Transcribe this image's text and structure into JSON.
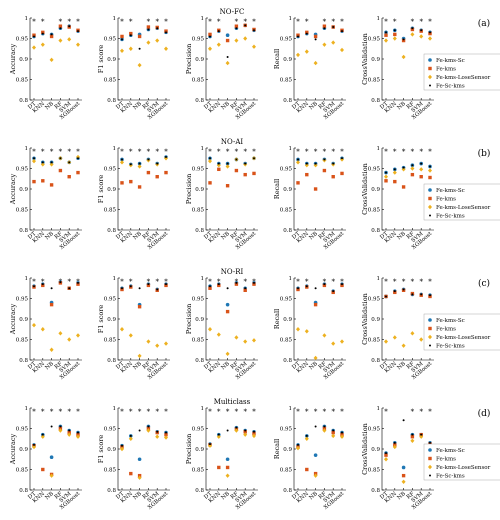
{
  "figure": {
    "categories": [
      "DT",
      "KNN",
      "NB",
      "RF",
      "SVM",
      "XGBoost"
    ],
    "metrics": [
      "Accuracy",
      "F1 score",
      "Precision",
      "Recall",
      "CrossValidation"
    ],
    "yticks": [
      "0.8",
      "0.85",
      "0.9",
      "0.95",
      "1"
    ],
    "ylim": [
      0.8,
      1.0
    ],
    "colors": {
      "Fe-kms-Sc": "#1f77b4",
      "Fe-kms": "#d95319",
      "Fe-kms-LoseSensor": "#edb120",
      "Fe-Sc-kms": "#000000"
    },
    "markers": {
      "Fe-kms-Sc": "circle",
      "Fe-kms": "square",
      "Fe-kms-LoseSensor": "diamond",
      "Fe-Sc-kms": "circle-small"
    },
    "significance_mark": "*"
  },
  "chart_data": [
    {
      "type": "scatter",
      "title": "NO-FC",
      "panel_label": "(a)",
      "legend_labels": [
        "Fe-kms-Sc",
        "Fe-kms",
        "Fe-kms-LoseSensor",
        "Fe-Sc-kms"
      ],
      "subplots": [
        {
          "ylabel": "Accuracy",
          "stars": [
            0,
            1,
            3,
            4,
            5
          ],
          "series": {
            "Fe-kms-Sc": [
              0.955,
              0.962,
              0.96,
              0.975,
              0.98,
              0.968
            ],
            "Fe-kms": [
              0.958,
              0.965,
              0.955,
              0.98,
              0.978,
              0.97
            ],
            "Fe-kms-LoseSensor": [
              0.928,
              0.935,
              0.898,
              0.945,
              0.948,
              0.935
            ],
            "Fe-Sc-kms": [
              0.955,
              0.962,
              0.96,
              0.975,
              0.98,
              0.968
            ]
          }
        },
        {
          "ylabel": "F1 score",
          "stars": [
            0,
            1,
            3,
            4,
            5
          ],
          "series": {
            "Fe-kms-Sc": [
              0.948,
              0.958,
              0.96,
              0.972,
              0.975,
              0.965
            ],
            "Fe-kms": [
              0.955,
              0.962,
              0.955,
              0.978,
              0.977,
              0.968
            ],
            "Fe-kms-LoseSensor": [
              0.92,
              0.925,
              0.885,
              0.94,
              0.945,
              0.925
            ],
            "Fe-Sc-kms": [
              0.948,
              0.958,
              0.925,
              0.972,
              0.975,
              0.965
            ]
          }
        },
        {
          "ylabel": "Precision",
          "stars": [
            0,
            1,
            3,
            4,
            5
          ],
          "series": {
            "Fe-kms-Sc": [
              0.955,
              0.968,
              0.958,
              0.975,
              0.982,
              0.97
            ],
            "Fe-kms": [
              0.96,
              0.97,
              0.945,
              0.98,
              0.982,
              0.972
            ],
            "Fe-kms-LoseSensor": [
              0.925,
              0.935,
              0.89,
              0.945,
              0.95,
              0.93
            ],
            "Fe-Sc-kms": [
              0.955,
              0.968,
              0.905,
              0.975,
              0.982,
              0.97
            ]
          }
        },
        {
          "ylabel": "Recall",
          "stars": [
            0,
            1,
            3,
            4,
            5
          ],
          "series": {
            "Fe-kms-Sc": [
              0.955,
              0.962,
              0.96,
              0.975,
              0.978,
              0.968
            ],
            "Fe-kms": [
              0.958,
              0.965,
              0.955,
              0.98,
              0.978,
              0.97
            ],
            "Fe-kms-LoseSensor": [
              0.91,
              0.918,
              0.89,
              0.935,
              0.94,
              0.922
            ],
            "Fe-Sc-kms": [
              0.955,
              0.962,
              0.948,
              0.975,
              0.978,
              0.968
            ]
          }
        },
        {
          "ylabel": "CrossValidation",
          "stars": [
            0,
            1,
            3,
            4,
            5
          ],
          "series": {
            "Fe-kms-Sc": [
              0.965,
              0.97,
              0.95,
              0.975,
              0.97,
              0.965
            ],
            "Fe-kms": [
              0.958,
              0.96,
              0.945,
              0.972,
              0.968,
              0.962
            ],
            "Fe-kms-LoseSensor": [
              0.945,
              0.95,
              0.905,
              0.96,
              0.955,
              0.95
            ],
            "Fe-Sc-kms": [
              0.965,
              0.97,
              0.948,
              0.975,
              0.97,
              0.965
            ]
          }
        }
      ]
    },
    {
      "type": "scatter",
      "title": "NO-AI",
      "panel_label": "(b)",
      "legend_labels": [
        "Fe-kms-Sc",
        "Fe-kms",
        "Fe-kms-LoseSensor",
        "Fe-Sc-kms"
      ],
      "subplots": [
        {
          "ylabel": "Accuracy",
          "stars": [
            0,
            1,
            2,
            3,
            4,
            5
          ],
          "series": {
            "Fe-kms-Sc": [
              0.975,
              0.965,
              0.965,
              0.975,
              0.965,
              0.975
            ],
            "Fe-kms": [
              0.918,
              0.92,
              0.91,
              0.945,
              0.93,
              0.94
            ],
            "Fe-kms-LoseSensor": [
              0.968,
              0.96,
              0.96,
              0.975,
              0.965,
              0.978
            ],
            "Fe-Sc-kms": [
              0.975,
              0.965,
              0.965,
              0.975,
              0.965,
              0.975
            ]
          }
        },
        {
          "ylabel": "F1 score",
          "stars": [
            0,
            1,
            2,
            3,
            4,
            5
          ],
          "series": {
            "Fe-kms-Sc": [
              0.972,
              0.96,
              0.962,
              0.972,
              0.962,
              0.978
            ],
            "Fe-kms": [
              0.915,
              0.918,
              0.905,
              0.94,
              0.93,
              0.94
            ],
            "Fe-kms-LoseSensor": [
              0.965,
              0.958,
              0.955,
              0.97,
              0.96,
              0.975
            ],
            "Fe-Sc-kms": [
              0.972,
              0.96,
              0.962,
              0.972,
              0.962,
              0.978
            ]
          }
        },
        {
          "ylabel": "Precision",
          "stars": [
            0,
            1,
            2,
            3,
            4,
            5
          ],
          "series": {
            "Fe-kms-Sc": [
              0.975,
              0.962,
              0.962,
              0.972,
              0.962,
              0.975
            ],
            "Fe-kms": [
              0.915,
              0.948,
              0.908,
              0.945,
              0.935,
              0.938
            ],
            "Fe-kms-LoseSensor": [
              0.968,
              0.958,
              0.955,
              0.972,
              0.96,
              0.975
            ],
            "Fe-Sc-kms": [
              0.975,
              0.962,
              0.962,
              0.972,
              0.962,
              0.975
            ]
          }
        },
        {
          "ylabel": "Recall",
          "stars": [
            0,
            1,
            2,
            3,
            4,
            5
          ],
          "series": {
            "Fe-kms-Sc": [
              0.972,
              0.962,
              0.962,
              0.972,
              0.962,
              0.975
            ],
            "Fe-kms": [
              0.915,
              0.935,
              0.9,
              0.945,
              0.93,
              0.938
            ],
            "Fe-kms-LoseSensor": [
              0.965,
              0.958,
              0.958,
              0.97,
              0.96,
              0.972
            ],
            "Fe-Sc-kms": [
              0.972,
              0.962,
              0.962,
              0.972,
              0.962,
              0.975
            ]
          }
        },
        {
          "ylabel": "CrossValidation",
          "stars": [
            0,
            1,
            2,
            3,
            4,
            5
          ],
          "series": {
            "Fe-kms-Sc": [
              0.94,
              0.948,
              0.952,
              0.958,
              0.962,
              0.955
            ],
            "Fe-kms": [
              0.92,
              0.918,
              0.905,
              0.935,
              0.93,
              0.928
            ],
            "Fe-kms-LoseSensor": [
              0.93,
              0.94,
              0.948,
              0.95,
              0.948,
              0.945
            ],
            "Fe-Sc-kms": [
              0.94,
              0.948,
              0.952,
              0.958,
              0.962,
              0.955
            ]
          }
        }
      ]
    },
    {
      "type": "scatter",
      "title": "NO-RI",
      "panel_label": "(c)",
      "legend_labels": [
        "Fe-kms-Sc",
        "Fe-kms",
        "Fe-kms-LoseSensor",
        "Fe-Sc-kms"
      ],
      "subplots": [
        {
          "ylabel": "Accuracy",
          "stars": [
            0,
            1,
            3,
            4,
            5
          ],
          "series": {
            "Fe-kms-Sc": [
              0.98,
              0.985,
              0.94,
              0.99,
              0.975,
              0.988
            ],
            "Fe-kms": [
              0.978,
              0.982,
              0.935,
              0.988,
              0.975,
              0.985
            ],
            "Fe-kms-LoseSensor": [
              0.885,
              0.875,
              0.825,
              0.865,
              0.85,
              0.86
            ],
            "Fe-Sc-kms": [
              0.98,
              0.985,
              0.975,
              0.99,
              0.975,
              0.988
            ]
          }
        },
        {
          "ylabel": "F1 score",
          "stars": [
            0,
            1,
            3,
            4,
            5
          ],
          "series": {
            "Fe-kms-Sc": [
              0.975,
              0.98,
              0.935,
              0.985,
              0.972,
              0.985
            ],
            "Fe-kms": [
              0.972,
              0.978,
              0.93,
              0.982,
              0.97,
              0.982
            ],
            "Fe-kms-LoseSensor": [
              0.875,
              0.86,
              0.81,
              0.845,
              0.835,
              0.84
            ],
            "Fe-Sc-kms": [
              0.975,
              0.98,
              0.975,
              0.985,
              0.972,
              0.985
            ]
          }
        },
        {
          "ylabel": "Precision",
          "stars": [
            0,
            1,
            3,
            4,
            5
          ],
          "series": {
            "Fe-kms-Sc": [
              0.98,
              0.985,
              0.935,
              0.988,
              0.975,
              0.988
            ],
            "Fe-kms": [
              0.975,
              0.982,
              0.918,
              0.985,
              0.97,
              0.985
            ],
            "Fe-kms-LoseSensor": [
              0.875,
              0.862,
              0.815,
              0.855,
              0.845,
              0.848
            ],
            "Fe-Sc-kms": [
              0.98,
              0.985,
              0.975,
              0.988,
              0.975,
              0.988
            ]
          }
        },
        {
          "ylabel": "Recall",
          "stars": [
            0,
            1,
            3,
            4,
            5
          ],
          "series": {
            "Fe-kms-Sc": [
              0.975,
              0.98,
              0.94,
              0.985,
              0.968,
              0.985
            ],
            "Fe-kms": [
              0.972,
              0.978,
              0.935,
              0.982,
              0.965,
              0.982
            ],
            "Fe-kms-LoseSensor": [
              0.875,
              0.87,
              0.805,
              0.86,
              0.84,
              0.845
            ],
            "Fe-Sc-kms": [
              0.975,
              0.98,
              0.975,
              0.985,
              0.968,
              0.985
            ]
          }
        },
        {
          "ylabel": "CrossValidation",
          "stars": [
            0,
            1,
            2,
            3,
            4,
            5
          ],
          "series": {
            "Fe-kms-Sc": [
              0.955,
              0.968,
              0.972,
              0.96,
              0.96,
              0.958
            ],
            "Fe-kms": [
              0.955,
              0.965,
              0.97,
              0.962,
              0.958,
              0.955
            ],
            "Fe-kms-LoseSensor": [
              0.845,
              0.855,
              0.835,
              0.865,
              0.85,
              0.86
            ],
            "Fe-Sc-kms": [
              0.955,
              0.968,
              0.972,
              0.96,
              0.96,
              0.958
            ]
          }
        }
      ]
    },
    {
      "type": "scatter",
      "title": "Multiclass",
      "panel_label": "(d)",
      "legend_labels": [
        "Fe-kms-Sc",
        "Fe-kms",
        "Fe-kms-LoseSensor",
        "Fe-Sc-kms"
      ],
      "subplots": [
        {
          "ylabel": "Accuracy",
          "stars": [
            0,
            1,
            2,
            3,
            4,
            5
          ],
          "series": {
            "Fe-kms-Sc": [
              0.91,
              0.935,
              0.88,
              0.955,
              0.945,
              0.94
            ],
            "Fe-kms": [
              0.908,
              0.85,
              0.838,
              0.95,
              0.94,
              0.935
            ],
            "Fe-kms-LoseSensor": [
              0.905,
              0.93,
              0.835,
              0.945,
              0.935,
              0.93
            ],
            "Fe-Sc-kms": [
              0.91,
              0.935,
              0.955,
              0.955,
              0.945,
              0.94
            ]
          }
        },
        {
          "ylabel": "F1 score",
          "stars": [
            0,
            1,
            2,
            3,
            4,
            5
          ],
          "series": {
            "Fe-kms-Sc": [
              0.908,
              0.932,
              0.875,
              0.955,
              0.942,
              0.94
            ],
            "Fe-kms": [
              0.905,
              0.84,
              0.835,
              0.95,
              0.94,
              0.935
            ],
            "Fe-kms-LoseSensor": [
              0.9,
              0.925,
              0.83,
              0.945,
              0.93,
              0.928
            ],
            "Fe-Sc-kms": [
              0.908,
              0.932,
              0.945,
              0.955,
              0.942,
              0.94
            ]
          }
        },
        {
          "ylabel": "Precision",
          "stars": [
            0,
            1,
            2,
            3,
            4,
            5
          ],
          "series": {
            "Fe-kms-Sc": [
              0.912,
              0.935,
              0.875,
              0.952,
              0.945,
              0.942
            ],
            "Fe-kms": [
              0.91,
              0.855,
              0.855,
              0.948,
              0.942,
              0.938
            ],
            "Fe-kms-LoseSensor": [
              0.908,
              0.93,
              0.835,
              0.945,
              0.935,
              0.932
            ],
            "Fe-Sc-kms": [
              0.912,
              0.935,
              0.945,
              0.952,
              0.945,
              0.942
            ]
          }
        },
        {
          "ylabel": "Recall",
          "stars": [
            0,
            1,
            2,
            3,
            4,
            5
          ],
          "series": {
            "Fe-kms-Sc": [
              0.91,
              0.932,
              0.885,
              0.955,
              0.945,
              0.94
            ],
            "Fe-kms": [
              0.905,
              0.85,
              0.84,
              0.95,
              0.94,
              0.935
            ],
            "Fe-kms-LoseSensor": [
              0.902,
              0.925,
              0.835,
              0.945,
              0.932,
              0.93
            ],
            "Fe-Sc-kms": [
              0.91,
              0.932,
              0.955,
              0.955,
              0.945,
              0.94
            ]
          }
        },
        {
          "ylabel": "CrossValidation",
          "stars": [
            0,
            3,
            4,
            5
          ],
          "series": {
            "Fe-kms-Sc": [
              0.89,
              0.915,
              0.855,
              0.935,
              0.935,
              0.915
            ],
            "Fe-kms": [
              0.885,
              0.91,
              0.835,
              0.93,
              0.935,
              0.912
            ],
            "Fe-kms-LoseSensor": [
              0.875,
              0.905,
              0.82,
              0.92,
              0.93,
              0.905
            ],
            "Fe-Sc-kms": [
              0.89,
              0.915,
              0.97,
              0.935,
              0.935,
              0.915
            ]
          }
        }
      ]
    }
  ]
}
